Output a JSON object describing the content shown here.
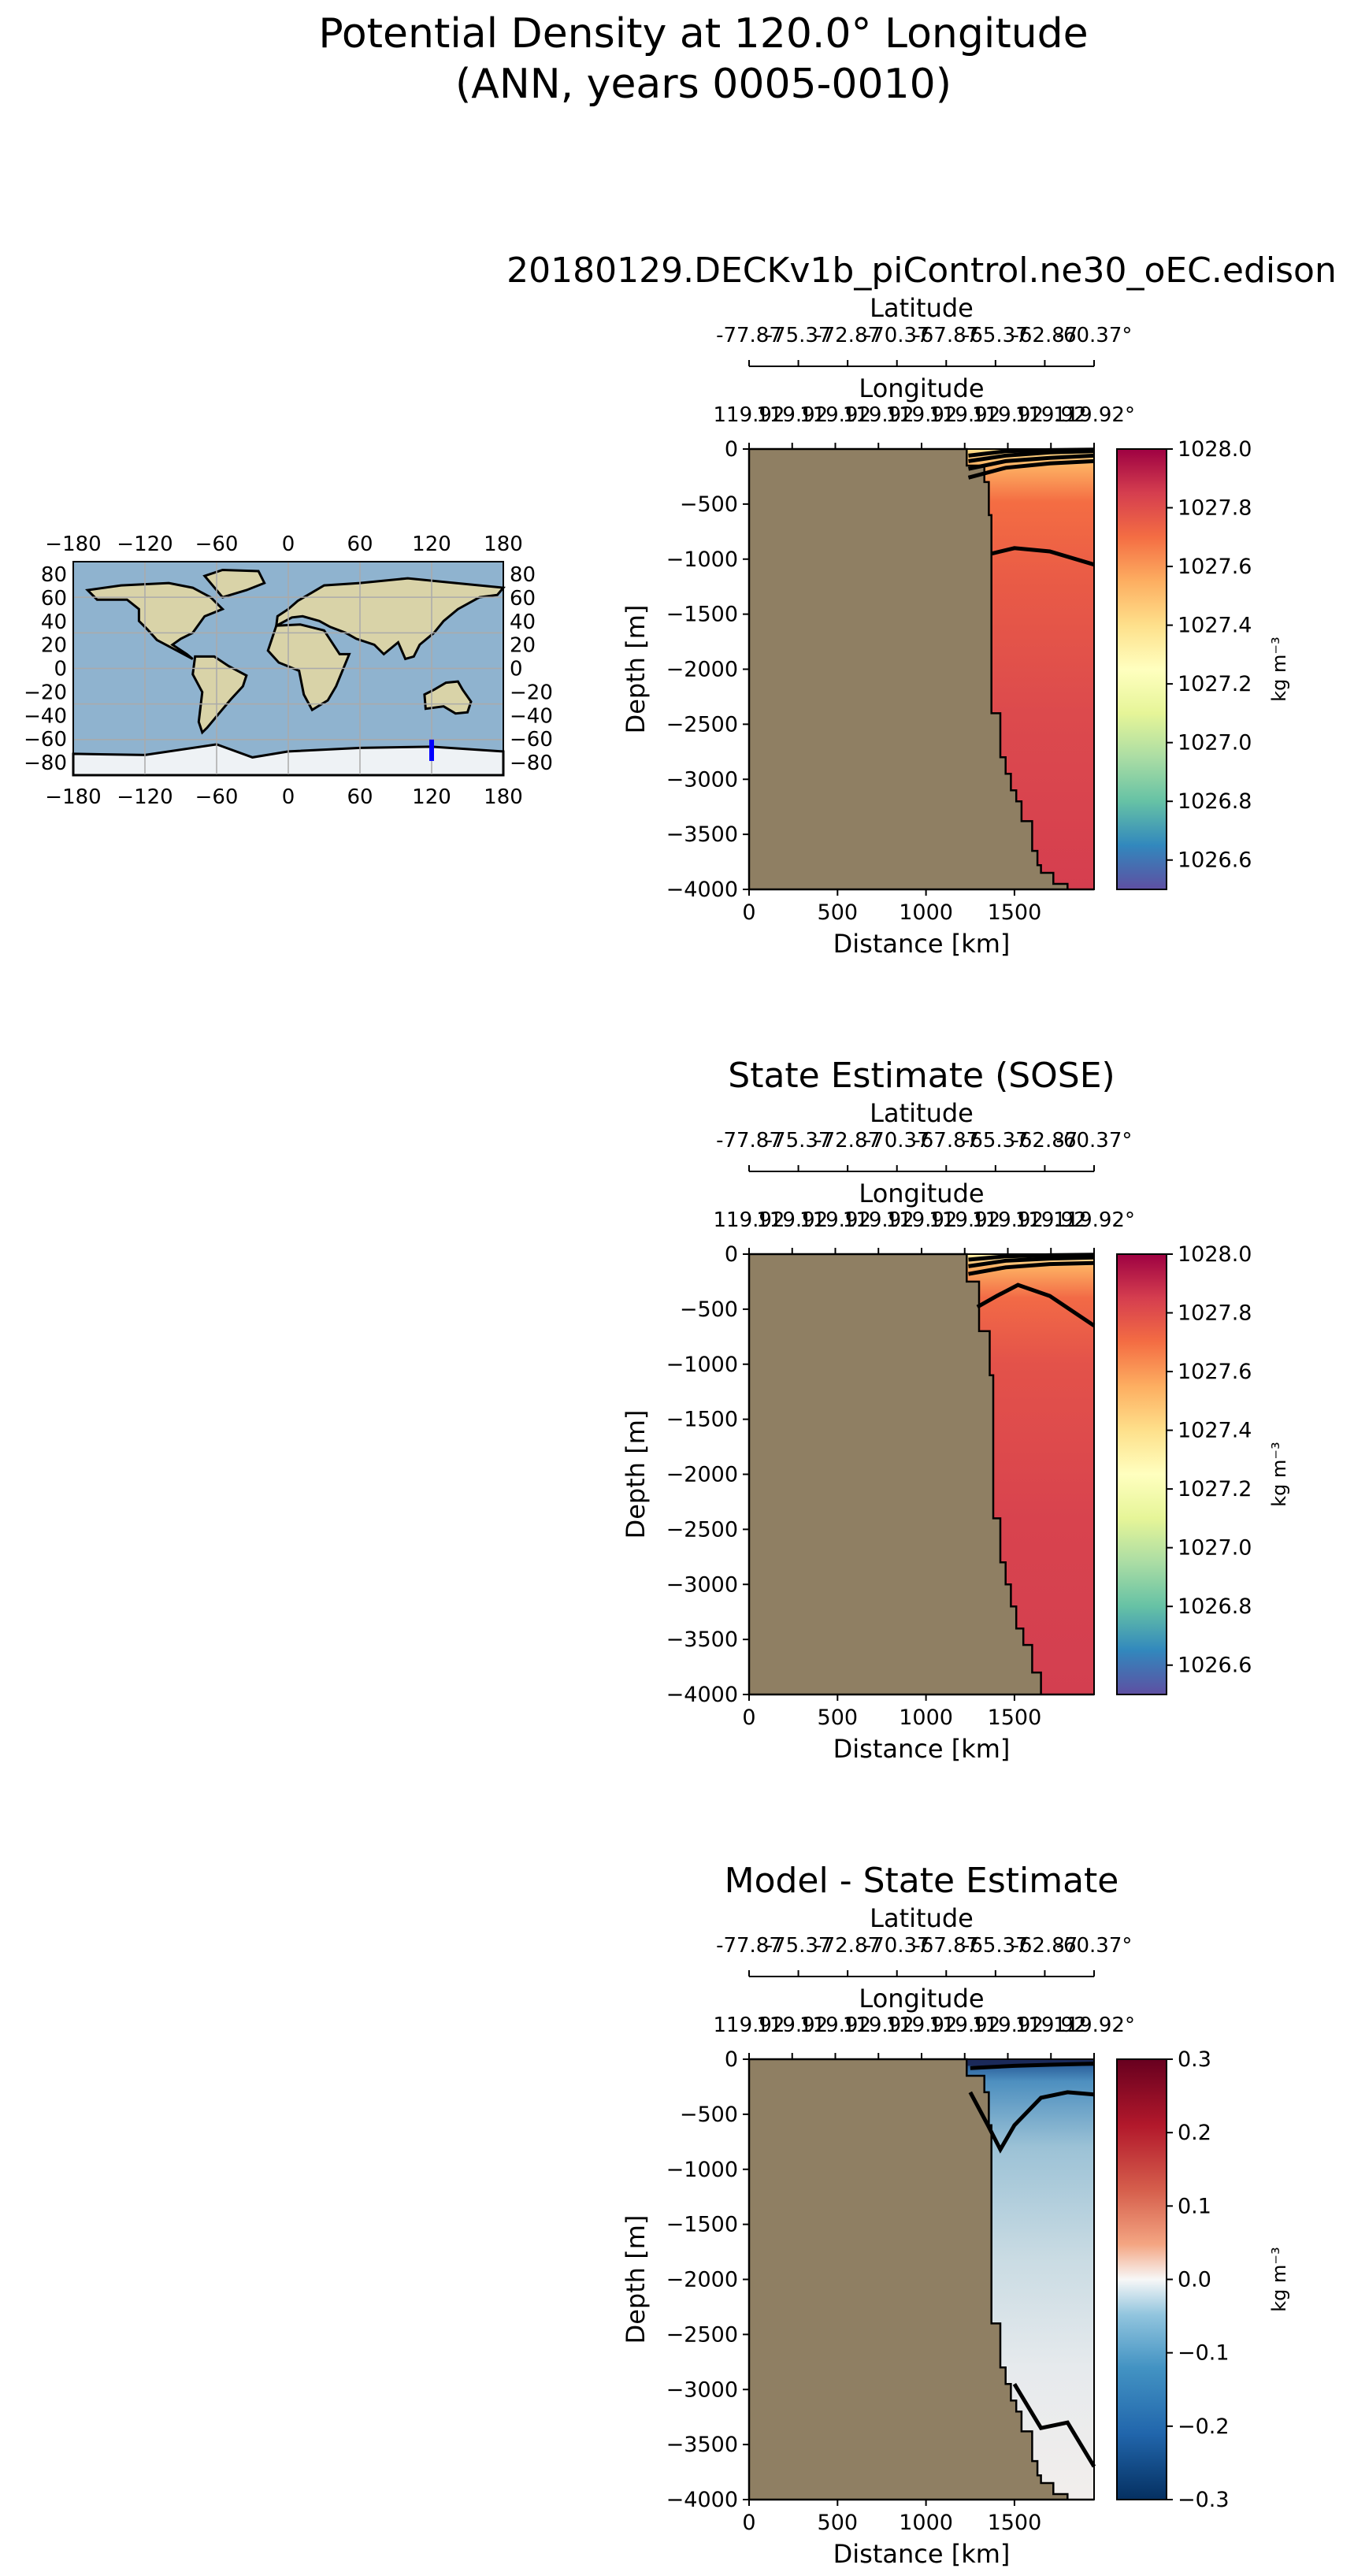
{
  "figure": {
    "title_line1": "Potential Density at 120.0° Longitude",
    "title_line2": "(ANN, years 0005-0010)"
  },
  "colors": {
    "land": "#8f7f63",
    "ocean": "#8fb3cf",
    "continent": "#d9d3a8",
    "section_line": "#0000ff",
    "contour": "#000000"
  },
  "map": {
    "x_ticks": [
      "−180",
      "−120",
      "−60",
      "0",
      "60",
      "120",
      "180"
    ],
    "y_ticks": [
      "80",
      "60",
      "40",
      "20",
      "0",
      "−20",
      "−40",
      "−60",
      "−80"
    ],
    "section_longitude": 120,
    "section_lat_range": [
      -78,
      -60
    ]
  },
  "chart_data": [
    {
      "type": "heatmap",
      "id": "model",
      "title": "20180129.DECKv1b_piControl.ne30_oEC.edison",
      "top_axis_latitude": {
        "label": "Latitude",
        "ticks": [
          "-77.87",
          "-75.37",
          "-72.87",
          "-70.37",
          "-67.87",
          "-65.37",
          "-62.87",
          "-60.37°"
        ]
      },
      "top_axis_longitude": {
        "label": "Longitude",
        "ticks": [
          "119.92",
          "119.92",
          "119.92",
          "119.92",
          "119.92",
          "119.92",
          "119.92",
          "119.92",
          "119.92°"
        ]
      },
      "xlabel": "Distance [km]",
      "ylabel": "Depth [m]",
      "xlim": [
        0,
        1950
      ],
      "ylim": [
        -4000,
        0
      ],
      "x_ticks": [
        0,
        500,
        1000,
        1500
      ],
      "y_ticks": [
        0,
        -500,
        -1000,
        -1500,
        -2000,
        -2500,
        -3000,
        -3500,
        -4000
      ],
      "colorbar": {
        "label": "kg m⁻³",
        "range": [
          1026.5,
          1028.0
        ],
        "ticks": [
          "1026.6",
          "1026.8",
          "1027.0",
          "1027.2",
          "1027.4",
          "1027.6",
          "1027.8",
          "1028.0"
        ],
        "colormap": "Spectral_r"
      },
      "bathymetry": {
        "distance_km": [
          1230,
          1230,
          1330,
          1330,
          1355,
          1355,
          1370,
          1370,
          1370,
          1420,
          1420,
          1450,
          1450,
          1480,
          1480,
          1510,
          1510,
          1540,
          1540,
          1600,
          1600,
          1630,
          1630,
          1650,
          1650,
          1720,
          1720,
          1800,
          1800,
          1950
        ],
        "depth_m": [
          0,
          -150,
          -150,
          -300,
          -300,
          -600,
          -600,
          -1000,
          -2400,
          -2400,
          -2800,
          -2800,
          -2950,
          -2950,
          -3100,
          -3100,
          -3200,
          -3200,
          -3380,
          -3380,
          -3650,
          -3650,
          -3780,
          -3780,
          -3850,
          -3850,
          -3950,
          -3950,
          -4000,
          -4000
        ]
      },
      "contours": [
        {
          "level": 1027.0,
          "distance_km": [
            1240,
            1450,
            1700,
            1950
          ],
          "depth_m": [
            -60,
            -20,
            -10,
            -5
          ]
        },
        {
          "level": 1027.2,
          "distance_km": [
            1240,
            1450,
            1700,
            1950
          ],
          "depth_m": [
            -110,
            -60,
            -30,
            -20
          ]
        },
        {
          "level": 1027.4,
          "distance_km": [
            1240,
            1450,
            1700,
            1950
          ],
          "depth_m": [
            -180,
            -110,
            -80,
            -60
          ]
        },
        {
          "level": 1027.6,
          "distance_km": [
            1240,
            1450,
            1700,
            1950
          ],
          "depth_m": [
            -260,
            -170,
            -130,
            -110
          ]
        },
        {
          "level": 1027.8,
          "distance_km": [
            1370,
            1500,
            1700,
            1950
          ],
          "depth_m": [
            -950,
            -900,
            -930,
            -1050
          ]
        }
      ]
    },
    {
      "type": "heatmap",
      "id": "obs",
      "title": "State Estimate (SOSE)",
      "top_axis_latitude": {
        "label": "Latitude",
        "ticks": [
          "-77.87",
          "-75.37",
          "-72.87",
          "-70.37",
          "-67.87",
          "-65.37",
          "-62.87",
          "-60.37°"
        ]
      },
      "top_axis_longitude": {
        "label": "Longitude",
        "ticks": [
          "119.92",
          "119.92",
          "119.92",
          "119.92",
          "119.92",
          "119.92",
          "119.92",
          "119.92",
          "119.92°"
        ]
      },
      "xlabel": "Distance [km]",
      "ylabel": "Depth [m]",
      "xlim": [
        0,
        1950
      ],
      "ylim": [
        -4000,
        0
      ],
      "x_ticks": [
        0,
        500,
        1000,
        1500
      ],
      "y_ticks": [
        0,
        -500,
        -1000,
        -1500,
        -2000,
        -2500,
        -3000,
        -3500,
        -4000
      ],
      "colorbar": {
        "label": "kg m⁻³",
        "range": [
          1026.5,
          1028.0
        ],
        "ticks": [
          "1026.6",
          "1026.8",
          "1027.0",
          "1027.2",
          "1027.4",
          "1027.6",
          "1027.8",
          "1028.0"
        ],
        "colormap": "Spectral_r"
      },
      "bathymetry": {
        "distance_km": [
          1230,
          1230,
          1300,
          1300,
          1360,
          1360,
          1380,
          1380,
          1380,
          1420,
          1420,
          1450,
          1450,
          1480,
          1480,
          1510,
          1510,
          1550,
          1550,
          1600,
          1600,
          1650,
          1650,
          1950
        ],
        "depth_m": [
          0,
          -250,
          -250,
          -700,
          -700,
          -1100,
          -1100,
          -1400,
          -2400,
          -2400,
          -2800,
          -2800,
          -3000,
          -3000,
          -3200,
          -3200,
          -3400,
          -3400,
          -3550,
          -3550,
          -3800,
          -3800,
          -4000,
          -4000
        ]
      },
      "contours": [
        {
          "level": 1027.2,
          "distance_km": [
            1240,
            1450,
            1700,
            1950
          ],
          "depth_m": [
            -50,
            -20,
            -10,
            -5
          ]
        },
        {
          "level": 1027.4,
          "distance_km": [
            1240,
            1450,
            1700,
            1950
          ],
          "depth_m": [
            -110,
            -60,
            -40,
            -30
          ]
        },
        {
          "level": 1027.6,
          "distance_km": [
            1240,
            1450,
            1700,
            1950
          ],
          "depth_m": [
            -180,
            -120,
            -90,
            -80
          ]
        },
        {
          "level": 1027.8,
          "distance_km": [
            1290,
            1400,
            1520,
            1700,
            1950
          ],
          "depth_m": [
            -480,
            -380,
            -280,
            -380,
            -650
          ]
        }
      ]
    },
    {
      "type": "heatmap",
      "id": "bias",
      "title": "Model - State Estimate",
      "top_axis_latitude": {
        "label": "Latitude",
        "ticks": [
          "-77.87",
          "-75.37",
          "-72.87",
          "-70.37",
          "-67.87",
          "-65.37",
          "-62.87",
          "-60.37°"
        ]
      },
      "top_axis_longitude": {
        "label": "Longitude",
        "ticks": [
          "119.92",
          "119.92",
          "119.92",
          "119.92",
          "119.92",
          "119.92",
          "119.92",
          "119.92",
          "119.92°"
        ]
      },
      "xlabel": "Distance [km]",
      "ylabel": "Depth [m]",
      "xlim": [
        0,
        1950
      ],
      "ylim": [
        -4000,
        0
      ],
      "x_ticks": [
        0,
        500,
        1000,
        1500
      ],
      "y_ticks": [
        0,
        -500,
        -1000,
        -1500,
        -2000,
        -2500,
        -3000,
        -3500,
        -4000
      ],
      "colorbar": {
        "label": "kg m⁻³",
        "range": [
          -0.3,
          0.3
        ],
        "ticks": [
          "−0.3",
          "−0.2",
          "−0.1",
          "0.0",
          "0.1",
          "0.2",
          "0.3"
        ],
        "colormap": "RdBu_r"
      },
      "bathymetry": {
        "distance_km": [
          1230,
          1230,
          1330,
          1330,
          1355,
          1355,
          1370,
          1370,
          1370,
          1420,
          1420,
          1450,
          1450,
          1480,
          1480,
          1510,
          1510,
          1540,
          1540,
          1600,
          1600,
          1630,
          1630,
          1650,
          1650,
          1720,
          1720,
          1800,
          1800,
          1950
        ],
        "depth_m": [
          0,
          -150,
          -150,
          -300,
          -300,
          -600,
          -600,
          -1000,
          -2400,
          -2400,
          -2800,
          -2800,
          -2950,
          -2950,
          -3100,
          -3100,
          -3200,
          -3200,
          -3380,
          -3380,
          -3650,
          -3650,
          -3780,
          -3780,
          -3850,
          -3850,
          -3950,
          -3950,
          -4000,
          -4000
        ]
      },
      "contours": [
        {
          "level": -0.2,
          "distance_km": [
            1250,
            1350,
            1420,
            1500,
            1650,
            1800,
            1950
          ],
          "depth_m": [
            -300,
            -600,
            -820,
            -600,
            -350,
            -300,
            -320
          ]
        },
        {
          "level": -0.3,
          "distance_km": [
            1250,
            1500,
            1700,
            1950
          ],
          "depth_m": [
            -80,
            -60,
            -50,
            -40
          ]
        },
        {
          "level": -0.1,
          "distance_km": [
            1500,
            1650,
            1800,
            1950
          ],
          "depth_m": [
            -2950,
            -3350,
            -3300,
            -3700
          ]
        }
      ]
    }
  ]
}
